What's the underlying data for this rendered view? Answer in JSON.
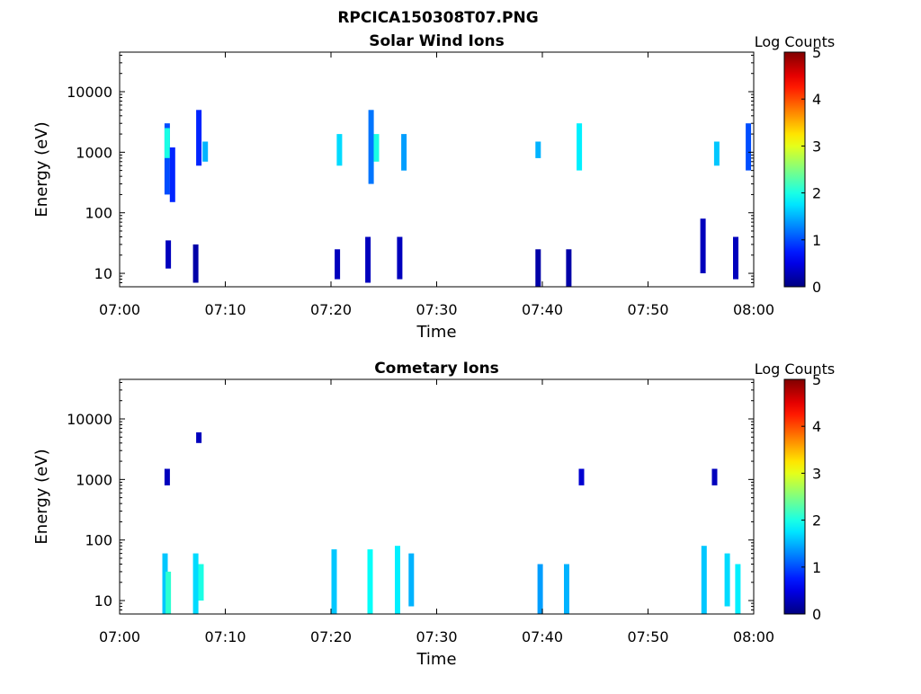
{
  "figure": {
    "title": "RPCICA150308T07.PNG"
  },
  "chart_data": [
    {
      "type": "heatmap",
      "title": "Solar Wind Ions",
      "xlabel": "Time",
      "ylabel": "Energy (eV)",
      "x_ticks": [
        "07:00",
        "07:10",
        "07:20",
        "07:30",
        "07:40",
        "07:50",
        "08:00"
      ],
      "x_range": [
        "07:00",
        "08:00"
      ],
      "y_scale": "log",
      "y_ticks": [
        "10",
        "100",
        "1000",
        "10000"
      ],
      "y_range": [
        6,
        45000
      ],
      "colorbar": {
        "label": "Log Counts",
        "range": [
          0,
          5
        ],
        "ticks": [
          "0",
          "1",
          "2",
          "3",
          "4",
          "5"
        ],
        "colormap": "jet"
      },
      "cells": [
        {
          "t": 4.5,
          "e": [
            200,
            3000
          ],
          "log_counts": 1.0
        },
        {
          "t": 4.5,
          "e": [
            800,
            2500
          ],
          "log_counts": 2.0
        },
        {
          "t": 4.6,
          "e": [
            12,
            35
          ],
          "log_counts": 0.3
        },
        {
          "t": 5.0,
          "e": [
            150,
            1200
          ],
          "log_counts": 0.8
        },
        {
          "t": 7.2,
          "e": [
            7,
            30
          ],
          "log_counts": 0.2
        },
        {
          "t": 7.5,
          "e": [
            600,
            5000
          ],
          "log_counts": 0.8
        },
        {
          "t": 8.1,
          "e": [
            700,
            1500
          ],
          "log_counts": 1.5
        },
        {
          "t": 20.8,
          "e": [
            600,
            2000
          ],
          "log_counts": 1.7
        },
        {
          "t": 20.6,
          "e": [
            8,
            25
          ],
          "log_counts": 0.3
        },
        {
          "t": 23.8,
          "e": [
            300,
            5000
          ],
          "log_counts": 1.2
        },
        {
          "t": 24.3,
          "e": [
            700,
            2000
          ],
          "log_counts": 2.0
        },
        {
          "t": 23.5,
          "e": [
            7,
            40
          ],
          "log_counts": 0.3
        },
        {
          "t": 26.9,
          "e": [
            500,
            2000
          ],
          "log_counts": 1.4
        },
        {
          "t": 26.5,
          "e": [
            8,
            40
          ],
          "log_counts": 0.3
        },
        {
          "t": 39.6,
          "e": [
            800,
            1500
          ],
          "log_counts": 1.5
        },
        {
          "t": 39.6,
          "e": [
            6,
            25
          ],
          "log_counts": 0.2
        },
        {
          "t": 42.5,
          "e": [
            6,
            25
          ],
          "log_counts": 0.2
        },
        {
          "t": 43.5,
          "e": [
            500,
            3000
          ],
          "log_counts": 1.8
        },
        {
          "t": 55.2,
          "e": [
            10,
            80
          ],
          "log_counts": 0.3
        },
        {
          "t": 56.5,
          "e": [
            600,
            1500
          ],
          "log_counts": 1.6
        },
        {
          "t": 58.3,
          "e": [
            8,
            40
          ],
          "log_counts": 0.3
        },
        {
          "t": 59.5,
          "e": [
            500,
            3000
          ],
          "log_counts": 1.0
        }
      ]
    },
    {
      "type": "heatmap",
      "title": "Cometary Ions",
      "xlabel": "Time",
      "ylabel": "Energy (eV)",
      "x_ticks": [
        "07:00",
        "07:10",
        "07:20",
        "07:30",
        "07:40",
        "07:50",
        "08:00"
      ],
      "x_range": [
        "07:00",
        "08:00"
      ],
      "y_scale": "log",
      "y_ticks": [
        "10",
        "100",
        "1000",
        "10000"
      ],
      "y_range": [
        6,
        45000
      ],
      "colorbar": {
        "label": "Log Counts",
        "range": [
          0,
          5
        ],
        "ticks": [
          "0",
          "1",
          "2",
          "3",
          "4",
          "5"
        ],
        "colormap": "jet"
      },
      "cells": [
        {
          "t": 4.3,
          "e": [
            6,
            60
          ],
          "log_counts": 1.6
        },
        {
          "t": 4.6,
          "e": [
            6,
            30
          ],
          "log_counts": 2.1
        },
        {
          "t": 4.5,
          "e": [
            800,
            1500
          ],
          "log_counts": 0.3
        },
        {
          "t": 7.2,
          "e": [
            6,
            60
          ],
          "log_counts": 1.7
        },
        {
          "t": 7.7,
          "e": [
            10,
            40
          ],
          "log_counts": 2.0
        },
        {
          "t": 7.5,
          "e": [
            4000,
            6000
          ],
          "log_counts": 0.3
        },
        {
          "t": 20.3,
          "e": [
            6,
            70
          ],
          "log_counts": 1.6
        },
        {
          "t": 23.7,
          "e": [
            6,
            70
          ],
          "log_counts": 1.9
        },
        {
          "t": 26.3,
          "e": [
            6,
            80
          ],
          "log_counts": 1.8
        },
        {
          "t": 27.6,
          "e": [
            8,
            60
          ],
          "log_counts": 1.5
        },
        {
          "t": 39.8,
          "e": [
            6,
            40
          ],
          "log_counts": 1.4
        },
        {
          "t": 42.3,
          "e": [
            6,
            40
          ],
          "log_counts": 1.5
        },
        {
          "t": 43.7,
          "e": [
            800,
            1500
          ],
          "log_counts": 0.4
        },
        {
          "t": 55.3,
          "e": [
            6,
            80
          ],
          "log_counts": 1.6
        },
        {
          "t": 56.3,
          "e": [
            800,
            1500
          ],
          "log_counts": 0.3
        },
        {
          "t": 57.5,
          "e": [
            8,
            60
          ],
          "log_counts": 1.7
        },
        {
          "t": 58.5,
          "e": [
            6,
            40
          ],
          "log_counts": 1.8
        }
      ]
    }
  ]
}
